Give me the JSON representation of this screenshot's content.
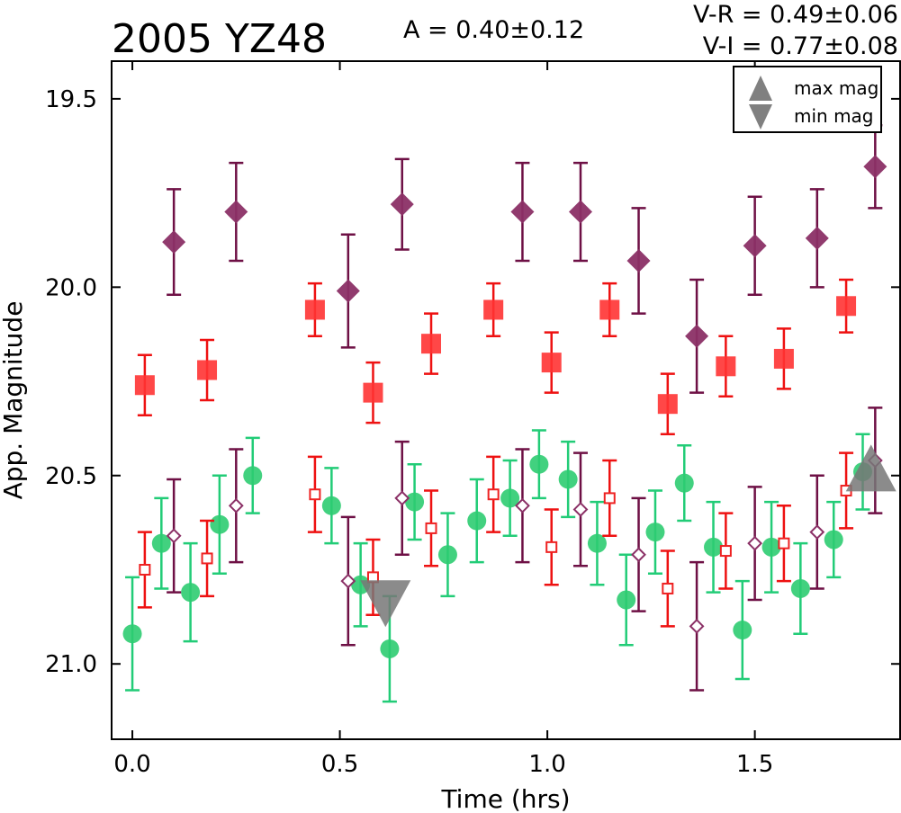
{
  "chart_data": {
    "type": "scatter",
    "title": "2005 YZ48",
    "amplitude_label": "A  = 0.40±0.12",
    "color_labels": [
      "V-R = 0.49±0.06",
      "V-I  = 0.77±0.08"
    ],
    "xlabel": "Time (hrs)",
    "ylabel": "App. Magnitude",
    "xlim": [
      -0.05,
      1.85
    ],
    "ylim": [
      21.2,
      19.4
    ],
    "y_inverted": true,
    "xticks": [
      0.0,
      0.5,
      1.0,
      1.5
    ],
    "xtick_labels": [
      "0.0",
      "0.5",
      "1.0",
      "1.5"
    ],
    "yticks": [
      19.5,
      20.0,
      20.5,
      21.0
    ],
    "ytick_labels": [
      "19.5",
      "20.0",
      "20.5",
      "21.0"
    ],
    "legend": {
      "placement": "top-right",
      "entries": [
        {
          "label": "max mag",
          "marker": "triangle-up"
        },
        {
          "label": "min mag",
          "marker": "triangle-down"
        }
      ]
    },
    "series": [
      {
        "marker": "circle",
        "color": "#2ecc71",
        "filled": true,
        "err_color": "#22cc77",
        "points": [
          {
            "x": 0.0,
            "y": 20.92,
            "err": 0.15
          },
          {
            "x": 0.07,
            "y": 20.68,
            "err": 0.12
          },
          {
            "x": 0.14,
            "y": 20.81,
            "err": 0.13
          },
          {
            "x": 0.21,
            "y": 20.63,
            "err": 0.13
          },
          {
            "x": 0.29,
            "y": 20.5,
            "err": 0.1
          },
          {
            "x": 0.48,
            "y": 20.58,
            "err": 0.1
          },
          {
            "x": 0.55,
            "y": 20.79,
            "err": 0.11
          },
          {
            "x": 0.62,
            "y": 20.96,
            "err": 0.14
          },
          {
            "x": 0.68,
            "y": 20.57,
            "err": 0.1
          },
          {
            "x": 0.76,
            "y": 20.71,
            "err": 0.11
          },
          {
            "x": 0.83,
            "y": 20.62,
            "err": 0.11
          },
          {
            "x": 0.91,
            "y": 20.56,
            "err": 0.1
          },
          {
            "x": 0.98,
            "y": 20.47,
            "err": 0.09
          },
          {
            "x": 1.05,
            "y": 20.51,
            "err": 0.1
          },
          {
            "x": 1.12,
            "y": 20.68,
            "err": 0.11
          },
          {
            "x": 1.19,
            "y": 20.83,
            "err": 0.12
          },
          {
            "x": 1.26,
            "y": 20.65,
            "err": 0.11
          },
          {
            "x": 1.33,
            "y": 20.52,
            "err": 0.1
          },
          {
            "x": 1.4,
            "y": 20.69,
            "err": 0.12
          },
          {
            "x": 1.47,
            "y": 20.91,
            "err": 0.13
          },
          {
            "x": 1.54,
            "y": 20.69,
            "err": 0.12
          },
          {
            "x": 1.61,
            "y": 20.8,
            "err": 0.12
          },
          {
            "x": 1.69,
            "y": 20.67,
            "err": 0.1
          },
          {
            "x": 1.76,
            "y": 20.49,
            "err": 0.1
          }
        ]
      },
      {
        "marker": "square",
        "color": "#ff3333",
        "filled": true,
        "err_color": "#ee1111",
        "points": [
          {
            "x": 0.03,
            "y": 20.26,
            "err": 0.08
          },
          {
            "x": 0.18,
            "y": 20.22,
            "err": 0.08
          },
          {
            "x": 0.44,
            "y": 20.06,
            "err": 0.07
          },
          {
            "x": 0.58,
            "y": 20.28,
            "err": 0.08
          },
          {
            "x": 0.72,
            "y": 20.15,
            "err": 0.08
          },
          {
            "x": 0.87,
            "y": 20.06,
            "err": 0.07
          },
          {
            "x": 1.01,
            "y": 20.2,
            "err": 0.08
          },
          {
            "x": 1.15,
            "y": 20.06,
            "err": 0.07
          },
          {
            "x": 1.29,
            "y": 20.31,
            "err": 0.08
          },
          {
            "x": 1.43,
            "y": 20.21,
            "err": 0.08
          },
          {
            "x": 1.57,
            "y": 20.19,
            "err": 0.08
          },
          {
            "x": 1.72,
            "y": 20.05,
            "err": 0.07
          }
        ]
      },
      {
        "marker": "square",
        "color": "#ee2222",
        "filled": false,
        "err_color": "#ee1111",
        "points": [
          {
            "x": 0.03,
            "y": 20.75,
            "err": 0.1
          },
          {
            "x": 0.18,
            "y": 20.72,
            "err": 0.1
          },
          {
            "x": 0.44,
            "y": 20.55,
            "err": 0.1
          },
          {
            "x": 0.58,
            "y": 20.77,
            "err": 0.1
          },
          {
            "x": 0.72,
            "y": 20.64,
            "err": 0.1
          },
          {
            "x": 0.87,
            "y": 20.55,
            "err": 0.1
          },
          {
            "x": 1.01,
            "y": 20.69,
            "err": 0.1
          },
          {
            "x": 1.15,
            "y": 20.56,
            "err": 0.1
          },
          {
            "x": 1.29,
            "y": 20.8,
            "err": 0.1
          },
          {
            "x": 1.43,
            "y": 20.7,
            "err": 0.1
          },
          {
            "x": 1.57,
            "y": 20.68,
            "err": 0.1
          },
          {
            "x": 1.72,
            "y": 20.54,
            "err": 0.1
          }
        ]
      },
      {
        "marker": "diamond",
        "color": "#8b3066",
        "filled": true,
        "err_color": "#6e1045",
        "points": [
          {
            "x": 0.1,
            "y": 19.88,
            "err": 0.14
          },
          {
            "x": 0.25,
            "y": 19.8,
            "err": 0.13
          },
          {
            "x": 0.52,
            "y": 20.01,
            "err": 0.15
          },
          {
            "x": 0.65,
            "y": 19.78,
            "err": 0.12
          },
          {
            "x": 0.94,
            "y": 19.8,
            "err": 0.13
          },
          {
            "x": 1.08,
            "y": 19.8,
            "err": 0.13
          },
          {
            "x": 1.22,
            "y": 19.93,
            "err": 0.14
          },
          {
            "x": 1.36,
            "y": 20.13,
            "err": 0.15
          },
          {
            "x": 1.5,
            "y": 19.89,
            "err": 0.13
          },
          {
            "x": 1.65,
            "y": 19.87,
            "err": 0.13
          },
          {
            "x": 1.79,
            "y": 19.68,
            "err": 0.11
          }
        ]
      },
      {
        "marker": "diamond",
        "color": "#8b3066",
        "filled": false,
        "err_color": "#6e1045",
        "points": [
          {
            "x": 0.1,
            "y": 20.66,
            "err": 0.15
          },
          {
            "x": 0.25,
            "y": 20.58,
            "err": 0.15
          },
          {
            "x": 0.52,
            "y": 20.78,
            "err": 0.17
          },
          {
            "x": 0.65,
            "y": 20.56,
            "err": 0.15
          },
          {
            "x": 0.94,
            "y": 20.58,
            "err": 0.15
          },
          {
            "x": 1.08,
            "y": 20.59,
            "err": 0.15
          },
          {
            "x": 1.22,
            "y": 20.71,
            "err": 0.15
          },
          {
            "x": 1.36,
            "y": 20.9,
            "err": 0.17
          },
          {
            "x": 1.5,
            "y": 20.68,
            "err": 0.15
          },
          {
            "x": 1.65,
            "y": 20.65,
            "err": 0.15
          },
          {
            "x": 1.79,
            "y": 20.46,
            "err": 0.14
          }
        ]
      }
    ],
    "extrema": [
      {
        "type": "max",
        "x": 1.78,
        "y": 20.48,
        "color": "#777777"
      },
      {
        "type": "min",
        "x": 0.61,
        "y": 20.84,
        "color": "#777777"
      }
    ]
  }
}
